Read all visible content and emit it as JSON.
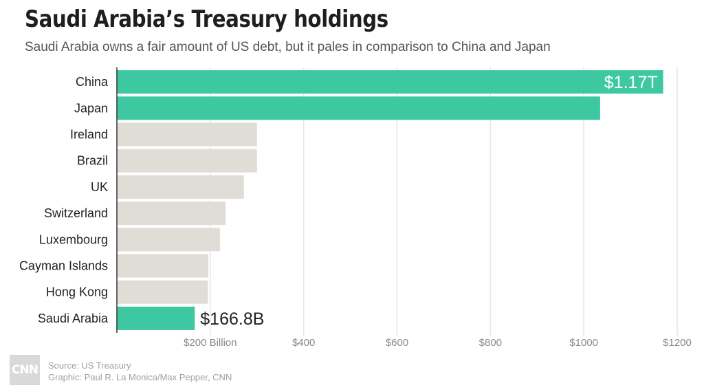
{
  "title": "Saudi Arabia’s Treasury holdings",
  "subtitle": "Saudi Arabia owns a fair amount of US debt, but it pales in comparison to China and Japan",
  "footer": {
    "logo_text": "CNN",
    "source": "Source: US Treasury",
    "credit": "Graphic: Paul R. La Monica/Max Pepper, CNN"
  },
  "colors": {
    "highlight": "#3ec8a2",
    "other": "#e0ddd7",
    "grid": "#e6e6e6",
    "axis": "#333333"
  },
  "chart_data": {
    "type": "bar",
    "orientation": "horizontal",
    "title": "Saudi Arabia’s Treasury holdings",
    "subtitle": "Saudi Arabia owns a fair amount of US debt, but it pales in comparison to China and Japan",
    "categories": [
      "China",
      "Japan",
      "Ireland",
      "Brazil",
      "UK",
      "Switzerland",
      "Luxembourg",
      "Cayman Islands",
      "Hong Kong",
      "Saudi Arabia"
    ],
    "values": [
      1170,
      1035,
      300,
      300,
      272,
      233,
      221,
      196,
      195,
      166.8
    ],
    "highlighted": [
      true,
      true,
      false,
      false,
      false,
      false,
      false,
      false,
      false,
      true
    ],
    "data_labels": [
      "$1.17T",
      "",
      "",
      "",
      "",
      "",
      "",
      "",
      "",
      "$166.8B"
    ],
    "xlim": [
      0,
      1200
    ],
    "x_ticks": [
      200,
      400,
      600,
      800,
      1000,
      1200
    ],
    "x_tick_labels": [
      "$200 Billion",
      "$400",
      "$600",
      "$800",
      "$1000",
      "$1200"
    ],
    "grid": true
  }
}
